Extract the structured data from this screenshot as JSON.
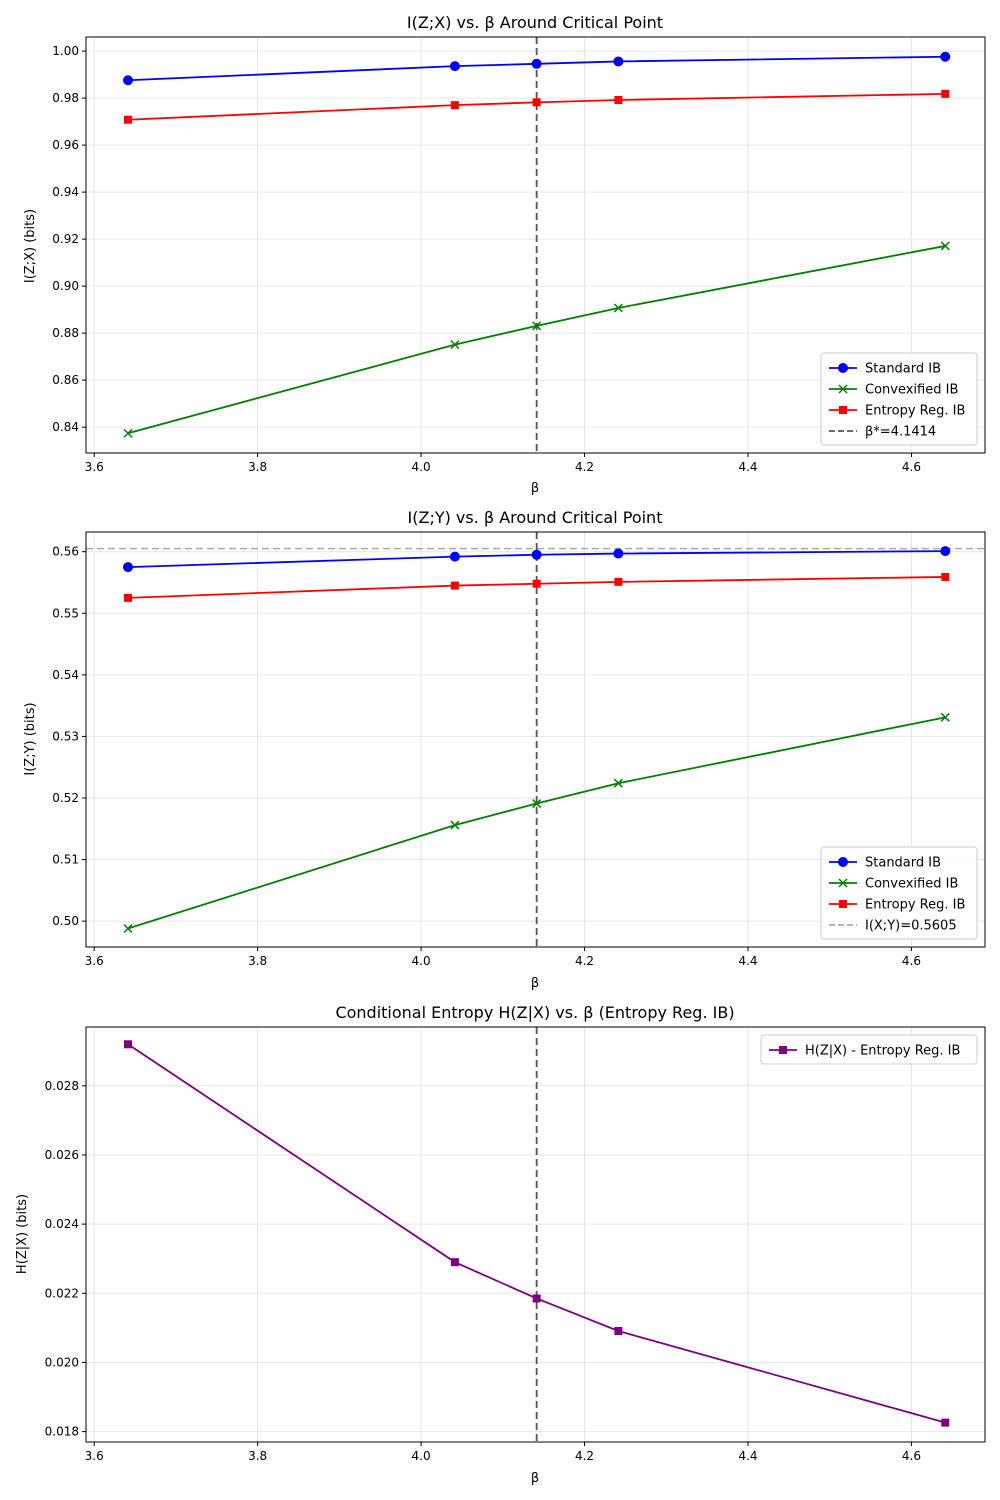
{
  "chart_data": [
    {
      "type": "line",
      "title": "I(Z;X) vs. β Around Critical Point",
      "xlabel": "β",
      "ylabel": "I(Z;X) (bits)",
      "xlim": [
        3.59,
        4.69
      ],
      "ylim": [
        0.829,
        1.006
      ],
      "xticks": [
        3.6,
        3.8,
        4.0,
        4.2,
        4.4,
        4.6
      ],
      "xtick_labels": [
        "3.6",
        "3.8",
        "4.0",
        "4.2",
        "4.4",
        "4.6"
      ],
      "yticks": [
        0.84,
        0.86,
        0.88,
        0.9,
        0.92,
        0.94,
        0.96,
        0.98,
        1.0
      ],
      "ytick_labels": [
        "0.84",
        "0.86",
        "0.88",
        "0.90",
        "0.92",
        "0.94",
        "0.96",
        "0.98",
        "1.00"
      ],
      "grid": true,
      "legend_position": "lower-right",
      "x": [
        3.6414,
        4.0414,
        4.1414,
        4.2414,
        4.6414
      ],
      "series": [
        {
          "name": "Standard IB",
          "color": "#0000ff",
          "marker": "circle",
          "values": [
            0.9876,
            0.9936,
            0.9946,
            0.9956,
            0.9976
          ]
        },
        {
          "name": "Convexified IB",
          "color": "#008000",
          "marker": "x",
          "values": [
            0.8374,
            0.8751,
            0.8831,
            0.8907,
            0.9171
          ]
        },
        {
          "name": "Entropy Reg. IB",
          "color": "#ff0000",
          "marker": "square",
          "values": [
            0.9708,
            0.977,
            0.9782,
            0.9792,
            0.9818
          ]
        }
      ],
      "reference_lines": [
        {
          "orientation": "vertical",
          "value": 4.1414,
          "label": "β*=4.1414",
          "color": "#555555",
          "dash": "dashed"
        }
      ]
    },
    {
      "type": "line",
      "title": "I(Z;Y) vs. β Around Critical Point",
      "xlabel": "β",
      "ylabel": "I(Z;Y) (bits)",
      "xlim": [
        3.59,
        4.69
      ],
      "ylim": [
        0.4958,
        0.5632
      ],
      "xticks": [
        3.6,
        3.8,
        4.0,
        4.2,
        4.4,
        4.6
      ],
      "xtick_labels": [
        "3.6",
        "3.8",
        "4.0",
        "4.2",
        "4.4",
        "4.6"
      ],
      "yticks": [
        0.5,
        0.51,
        0.52,
        0.53,
        0.54,
        0.55,
        0.56
      ],
      "ytick_labels": [
        "0.50",
        "0.51",
        "0.52",
        "0.53",
        "0.54",
        "0.55",
        "0.56"
      ],
      "grid": true,
      "legend_position": "lower-right",
      "x": [
        3.6414,
        4.0414,
        4.1414,
        4.2414,
        4.6414
      ],
      "series": [
        {
          "name": "Standard IB",
          "color": "#0000ff",
          "marker": "circle",
          "values": [
            0.5575,
            0.5592,
            0.5595,
            0.5597,
            0.5601
          ]
        },
        {
          "name": "Convexified IB",
          "color": "#008000",
          "marker": "x",
          "values": [
            0.4988,
            0.5156,
            0.5191,
            0.5224,
            0.5331
          ]
        },
        {
          "name": "Entropy Reg. IB",
          "color": "#ff0000",
          "marker": "square",
          "values": [
            0.5525,
            0.5545,
            0.5548,
            0.5551,
            0.5559
          ]
        }
      ],
      "reference_lines": [
        {
          "orientation": "horizontal",
          "value": 0.5605,
          "label": "I(X;Y)=0.5605",
          "color": "#aaaaaa",
          "dash": "dashed"
        },
        {
          "orientation": "vertical",
          "value": 4.1414,
          "label": "",
          "color": "#555555",
          "dash": "dashed"
        }
      ]
    },
    {
      "type": "line",
      "title": "Conditional Entropy H(Z|X) vs. β (Entropy Reg. IB)",
      "xlabel": "β",
      "ylabel": "H(Z|X) (bits)",
      "xlim": [
        3.59,
        4.69
      ],
      "ylim": [
        0.0177,
        0.0297
      ],
      "xticks": [
        3.6,
        3.8,
        4.0,
        4.2,
        4.4,
        4.6
      ],
      "xtick_labels": [
        "3.6",
        "3.8",
        "4.0",
        "4.2",
        "4.4",
        "4.6"
      ],
      "yticks": [
        0.018,
        0.02,
        0.022,
        0.024,
        0.026,
        0.028
      ],
      "ytick_labels": [
        "0.018",
        "0.020",
        "0.022",
        "0.024",
        "0.026",
        "0.028"
      ],
      "grid": true,
      "legend_position": "upper-right",
      "x": [
        3.6414,
        4.0414,
        4.1414,
        4.2414,
        4.6414
      ],
      "series": [
        {
          "name": "H(Z|X) - Entropy Reg. IB",
          "color": "#800080",
          "marker": "square",
          "values": [
            0.0292,
            0.0229,
            0.02185,
            0.02091,
            0.01826
          ]
        }
      ],
      "reference_lines": [
        {
          "orientation": "vertical",
          "value": 4.1414,
          "label": "",
          "color": "#555555",
          "dash": "dashed"
        }
      ]
    }
  ]
}
